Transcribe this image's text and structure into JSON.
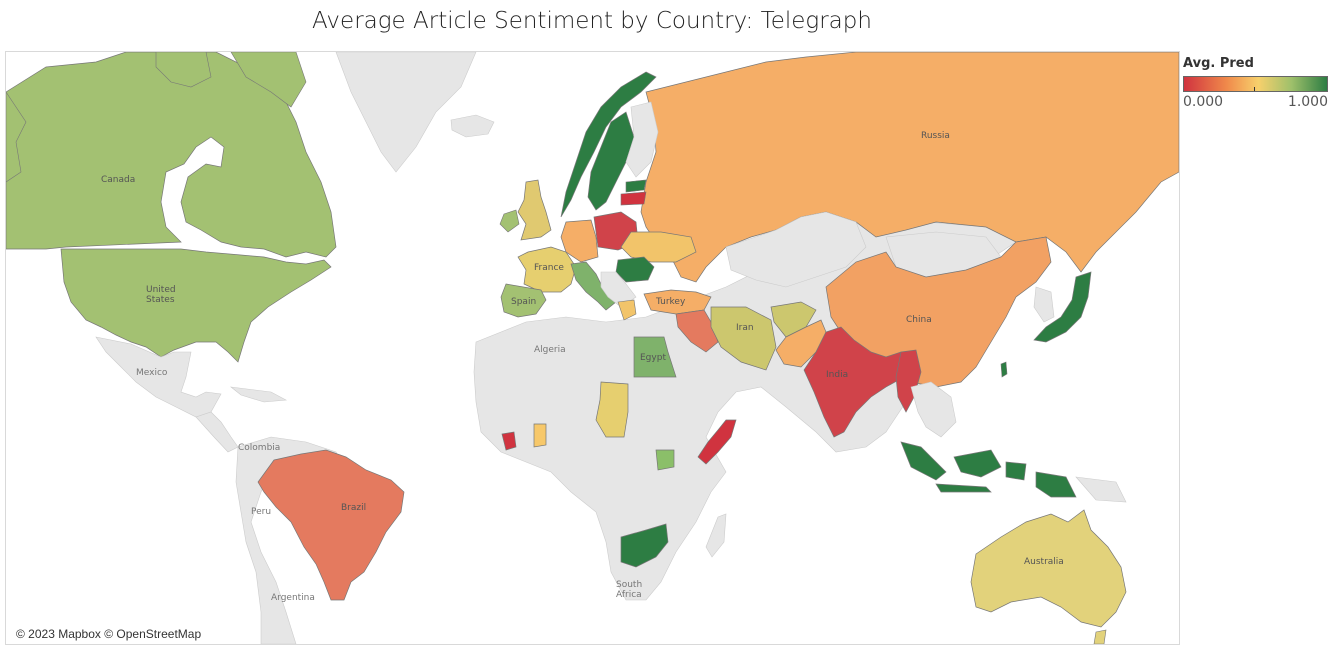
{
  "title": "Average Article Sentiment by Country: Telegraph",
  "legend": {
    "title": "Avg. Pred",
    "min_label": "0.000",
    "max_label": "1.000"
  },
  "colors": {
    "no_data": "#e6e6e6",
    "low": "#d0333f",
    "high": "#2d7d43",
    "ocean": "#ffffff",
    "border": "#888888"
  },
  "credit": "© 2023 Mapbox © OpenStreetMap",
  "map_labels": {
    "canada": "Canada",
    "united_states": "United\nStates",
    "mexico": "Mexico",
    "colombia": "Colombia",
    "peru": "Peru",
    "brazil": "Brazil",
    "argentina": "Argentina",
    "algeria": "Algeria",
    "south_africa": "South\nAfrica",
    "russia": "Russia",
    "china": "China",
    "india": "India",
    "iran": "Iran",
    "turkey": "Turkey",
    "egypt": "Egypt",
    "france": "France",
    "spain": "Spain",
    "australia": "Australia"
  },
  "countries": [
    {
      "name": "Canada",
      "value": 0.72
    },
    {
      "name": "United States",
      "value": 0.72
    },
    {
      "name": "Greenland",
      "value": null
    },
    {
      "name": "Mexico",
      "value": null
    },
    {
      "name": "Brazil",
      "value": 0.18
    },
    {
      "name": "Russia",
      "value": 0.35
    },
    {
      "name": "China",
      "value": 0.32
    },
    {
      "name": "India",
      "value": 0.03
    },
    {
      "name": "Australia",
      "value": 0.55
    },
    {
      "name": "Norway",
      "value": 0.97
    },
    {
      "name": "Sweden",
      "value": 0.97
    },
    {
      "name": "Finland",
      "value": null
    },
    {
      "name": "United Kingdom",
      "value": 0.58
    },
    {
      "name": "Ireland",
      "value": 0.62
    },
    {
      "name": "France",
      "value": 0.55
    },
    {
      "name": "Spain",
      "value": 0.72
    },
    {
      "name": "Germany",
      "value": 0.36
    },
    {
      "name": "Poland",
      "value": 0.03
    },
    {
      "name": "Ukraine",
      "value": 0.45
    },
    {
      "name": "Italy",
      "value": 0.82
    },
    {
      "name": "Romania",
      "value": 0.97
    },
    {
      "name": "Turkey",
      "value": 0.38
    },
    {
      "name": "Iran",
      "value": 0.62
    },
    {
      "name": "Afghanistan",
      "value": 0.62
    },
    {
      "name": "Pakistan",
      "value": 0.38
    },
    {
      "name": "Iraq",
      "value": 0.18
    },
    {
      "name": "Egypt",
      "value": 0.82
    },
    {
      "name": "Chad",
      "value": 0.52
    },
    {
      "name": "Ghana",
      "value": 0.45
    },
    {
      "name": "Liberia",
      "value": 0.05
    },
    {
      "name": "Somalia",
      "value": 0.03
    },
    {
      "name": "Uganda",
      "value": 0.82
    },
    {
      "name": "Zimbabwe",
      "value": 0.97
    },
    {
      "name": "Japan",
      "value": 0.97
    },
    {
      "name": "Indonesia",
      "value": 0.97
    },
    {
      "name": "Myanmar",
      "value": 0.05
    },
    {
      "name": "Mongolia",
      "value": null
    },
    {
      "name": "Kazakhstan",
      "value": null
    },
    {
      "name": "Latvia",
      "value": 0.05
    },
    {
      "name": "Estonia",
      "value": 0.97
    }
  ]
}
